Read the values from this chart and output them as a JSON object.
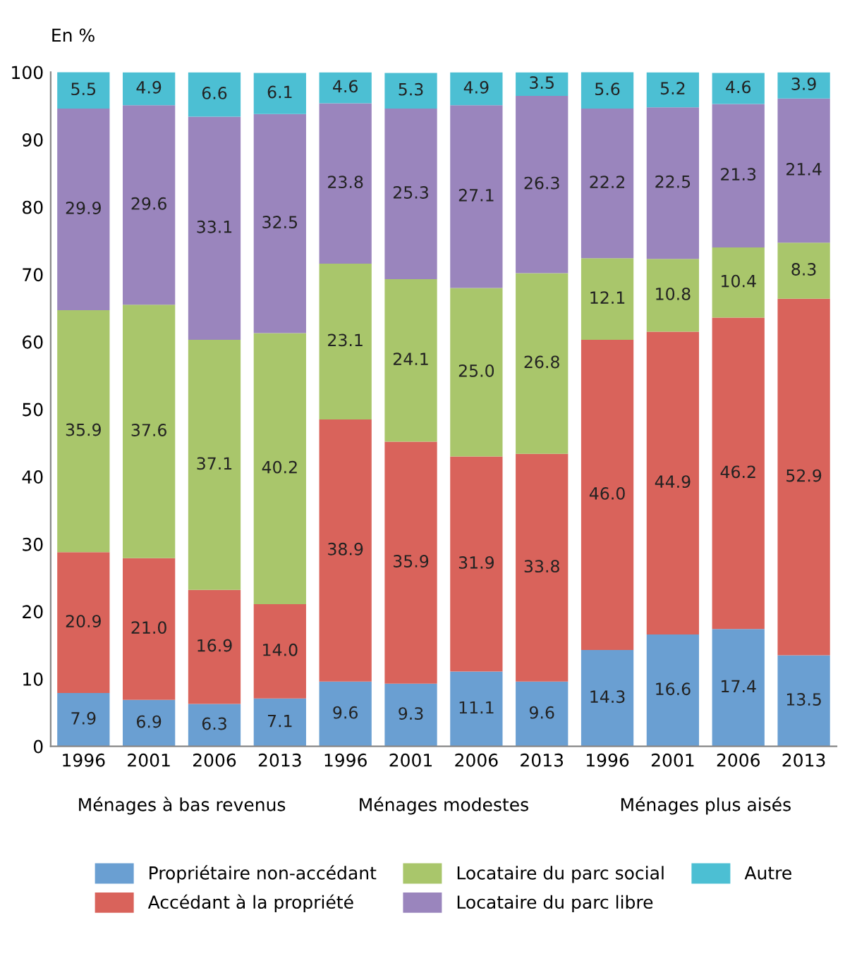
{
  "chart_data": {
    "type": "bar",
    "stacked": true,
    "ylabel": "En %",
    "categories": [
      "1996",
      "2001",
      "2006",
      "2013",
      "1996",
      "2001",
      "2006",
      "2013",
      "1996",
      "2001",
      "2006",
      "2013"
    ],
    "annotations": [
      "Ménages à bas revenus",
      "Ménages modestes",
      "Ménages plus aisés"
    ],
    "series": [
      {
        "name": "Propriétaire non-accédant",
        "color": "#6a9fd2",
        "values": [
          7.9,
          6.9,
          6.3,
          7.1,
          9.6,
          9.3,
          11.1,
          9.6,
          14.3,
          16.6,
          17.4,
          13.5
        ],
        "value_labels": [
          "7.9",
          "6.9",
          "6.3",
          "7.1",
          "9.6",
          "9.3",
          "11.1",
          "9.6",
          "14.3",
          "16.6",
          "17.4",
          "13.5"
        ]
      },
      {
        "name": "Accédant à la propriété",
        "color": "#d9635b",
        "values": [
          20.9,
          21.0,
          16.9,
          14.0,
          38.9,
          35.9,
          31.9,
          33.8,
          46.0,
          44.9,
          46.2,
          52.9
        ],
        "value_labels": [
          "20.9",
          "21.0",
          "16.9",
          "14.0",
          "38.9",
          "35.9",
          "31.9",
          "33.8",
          "46.0",
          "44.9",
          "46.2",
          "52.9"
        ]
      },
      {
        "name": "Locataire du parc social",
        "color": "#a9c66b",
        "values": [
          35.9,
          37.6,
          37.1,
          40.2,
          23.1,
          24.1,
          25.0,
          26.8,
          12.1,
          10.8,
          10.4,
          8.3
        ],
        "value_labels": [
          "35.9",
          "37.6",
          "37.1",
          "40.2",
          "23.1",
          "24.1",
          "25.0",
          "26.8",
          "12.1",
          "10.8",
          "10.4",
          "8.3"
        ]
      },
      {
        "name": "Locataire du parc libre",
        "color": "#9a85bd",
        "values": [
          29.9,
          29.6,
          33.1,
          32.5,
          23.8,
          25.3,
          27.1,
          26.3,
          22.2,
          22.5,
          21.3,
          21.4
        ],
        "value_labels": [
          "29.9",
          "29.6",
          "33.1",
          "32.5",
          "23.8",
          "25.3",
          "27.1",
          "26.3",
          "22.2",
          "22.5",
          "21.3",
          "21.4"
        ]
      },
      {
        "name": "Autre",
        "color": "#4cbfd3",
        "values": [
          5.5,
          4.9,
          6.6,
          6.1,
          4.6,
          5.3,
          4.9,
          3.5,
          5.6,
          5.2,
          4.6,
          3.9
        ],
        "value_labels": [
          "5.5",
          "4.9",
          "6.6",
          "6.1",
          "4.6",
          "5.3",
          "4.9",
          "3.5",
          "5.6",
          "5.2",
          "4.6",
          "3.9"
        ]
      }
    ],
    "ylim": [
      0,
      100
    ],
    "yticks": [
      0,
      10,
      20,
      30,
      40,
      50,
      60,
      70,
      80,
      90,
      100
    ],
    "legend": "bottom",
    "grid": false
  }
}
